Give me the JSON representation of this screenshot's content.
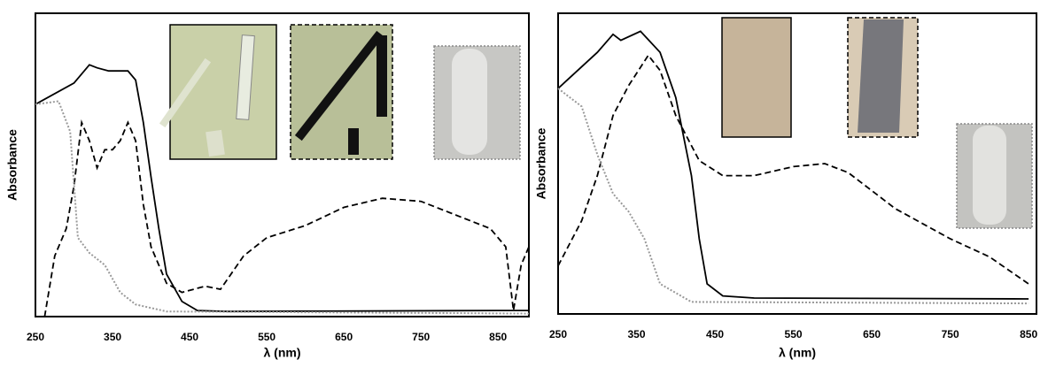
{
  "chart_data": [
    {
      "type": "line",
      "x_label": "λ (nm)",
      "y_label": "Absorbance",
      "xlim": [
        250,
        890
      ],
      "xticks": [
        250,
        350,
        450,
        550,
        650,
        750,
        850
      ],
      "ylim": [
        0,
        1
      ],
      "series": [
        {
          "color": "#000000",
          "dash": "solid",
          "x": [
            250,
            300,
            320,
            330,
            345,
            370,
            380,
            390,
            400,
            410,
            420,
            440,
            460,
            500,
            850,
            890
          ],
          "values": [
            0.7,
            0.77,
            0.83,
            0.82,
            0.81,
            0.81,
            0.78,
            0.64,
            0.46,
            0.29,
            0.14,
            0.05,
            0.02,
            0.017,
            0.02,
            0.02
          ]
        },
        {
          "color": "#000000",
          "dash": "dashed",
          "x": [
            262,
            275,
            290,
            300,
            310,
            320,
            330,
            340,
            350,
            360,
            370,
            380,
            390,
            400,
            420,
            440,
            470,
            490,
            520,
            550,
            600,
            650,
            700,
            750,
            800,
            840,
            860,
            870,
            880,
            890
          ],
          "values": [
            0,
            0.2,
            0.29,
            0.43,
            0.64,
            0.58,
            0.49,
            0.55,
            0.55,
            0.58,
            0.64,
            0.58,
            0.37,
            0.23,
            0.11,
            0.08,
            0.1,
            0.09,
            0.2,
            0.26,
            0.3,
            0.36,
            0.39,
            0.38,
            0.33,
            0.29,
            0.23,
            0.02,
            0.17,
            0.23
          ]
        },
        {
          "color": "#999999",
          "dash": "dotted",
          "x": [
            250,
            280,
            295,
            305,
            320,
            340,
            360,
            380,
            420,
            890
          ],
          "values": [
            0.7,
            0.71,
            0.61,
            0.26,
            0.21,
            0.17,
            0.08,
            0.04,
            0.017,
            0.01
          ]
        }
      ]
    },
    {
      "type": "line",
      "x_label": "λ (nm)",
      "y_label": "Absorbance",
      "xlim": [
        250,
        860
      ],
      "xticks": [
        250,
        350,
        450,
        550,
        650,
        750,
        850
      ],
      "ylim": [
        0,
        1
      ],
      "series": [
        {
          "color": "#000000",
          "dash": "solid",
          "x": [
            250,
            300,
            320,
            330,
            355,
            380,
            400,
            420,
            430,
            440,
            460,
            500,
            850
          ],
          "values": [
            0.75,
            0.87,
            0.93,
            0.91,
            0.94,
            0.87,
            0.72,
            0.46,
            0.25,
            0.1,
            0.06,
            0.053,
            0.05
          ]
        },
        {
          "color": "#000000",
          "dash": "dashed",
          "x": [
            250,
            280,
            300,
            320,
            340,
            365,
            380,
            400,
            430,
            460,
            500,
            550,
            590,
            620,
            680,
            750,
            800,
            850
          ],
          "values": [
            0.16,
            0.31,
            0.46,
            0.66,
            0.76,
            0.86,
            0.81,
            0.66,
            0.51,
            0.46,
            0.46,
            0.49,
            0.5,
            0.47,
            0.35,
            0.25,
            0.19,
            0.1
          ]
        },
        {
          "color": "#999999",
          "dash": "dotted",
          "x": [
            250,
            280,
            300,
            320,
            340,
            360,
            380,
            420,
            850
          ],
          "values": [
            0.75,
            0.69,
            0.53,
            0.4,
            0.34,
            0.25,
            0.1,
            0.04,
            0.035
          ]
        }
      ]
    }
  ]
}
